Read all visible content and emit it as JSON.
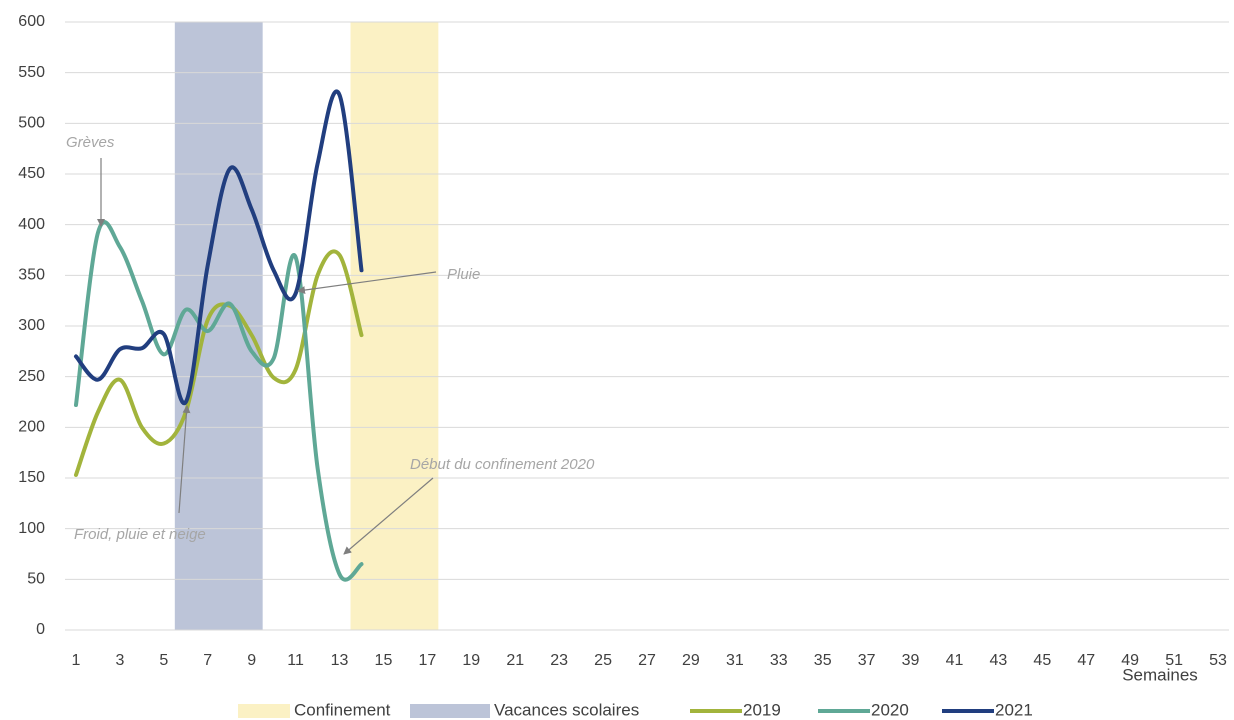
{
  "chart_data": {
    "type": "line",
    "x_label": "Semaines",
    "categories": [
      1,
      null,
      3,
      null,
      5,
      null,
      7,
      null,
      9,
      null,
      11,
      null,
      13,
      null,
      15,
      null,
      17,
      null,
      19,
      null,
      21,
      null,
      23,
      null,
      25,
      null,
      27,
      null,
      29,
      null,
      31,
      null,
      33,
      null,
      35,
      null,
      37,
      null,
      39,
      null,
      41,
      null,
      43,
      null,
      45,
      null,
      47,
      null,
      49,
      null,
      51,
      null,
      53
    ],
    "bands": [
      {
        "name": "Confinement",
        "color": "#fbf1c4",
        "start": 14,
        "end": 17
      },
      {
        "name": "Vacances scolaires",
        "color": "#bcc4d8",
        "start": 6,
        "end": 9
      }
    ],
    "series": [
      {
        "name": "2019",
        "color": "#a2b43c",
        "values": [
          153,
          215,
          247,
          200,
          184,
          215,
          306,
          320,
          291,
          249,
          257,
          350,
          370,
          291,
          null,
          null,
          null,
          null,
          null,
          null,
          null,
          null,
          null,
          null,
          null,
          null,
          null,
          null,
          null,
          null,
          null,
          null,
          null,
          null,
          null,
          null,
          null,
          null,
          null,
          null,
          null,
          null,
          null,
          null,
          null,
          null,
          null,
          null,
          null,
          null,
          null,
          null,
          null
        ]
      },
      {
        "name": "2020",
        "color": "#5fa896",
        "values": [
          222,
          392,
          378,
          325,
          272,
          316,
          295,
          322,
          275,
          268,
          368,
          160,
          55,
          65,
          null,
          null,
          null,
          null,
          null,
          null,
          null,
          null,
          null,
          null,
          null,
          null,
          null,
          null,
          null,
          null,
          null,
          null,
          null,
          null,
          null,
          null,
          null,
          null,
          null,
          null,
          null,
          null,
          null,
          null,
          null,
          null,
          null,
          null,
          null,
          null,
          null,
          null,
          null
        ]
      },
      {
        "name": "2021",
        "color": "#213e7f",
        "values": [
          270,
          247,
          277,
          278,
          292,
          225,
          360,
          455,
          415,
          355,
          332,
          460,
          528,
          355,
          null,
          null,
          null,
          null,
          null,
          null,
          null,
          null,
          null,
          null,
          null,
          null,
          null,
          null,
          null,
          null,
          null,
          null,
          null,
          null,
          null,
          null,
          null,
          null,
          null,
          null,
          null,
          null,
          null,
          null,
          null,
          null,
          null,
          null,
          null,
          null,
          null,
          null,
          null
        ]
      }
    ],
    "annotations": [
      "Grèves",
      "Froid, pluie et neige",
      "Pluie",
      "Début du confinement 2020"
    ],
    "ylim": [
      0,
      600
    ],
    "yticks": [
      0,
      50,
      100,
      150,
      200,
      250,
      300,
      350,
      400,
      450,
      500,
      550,
      600
    ],
    "grid": true
  }
}
